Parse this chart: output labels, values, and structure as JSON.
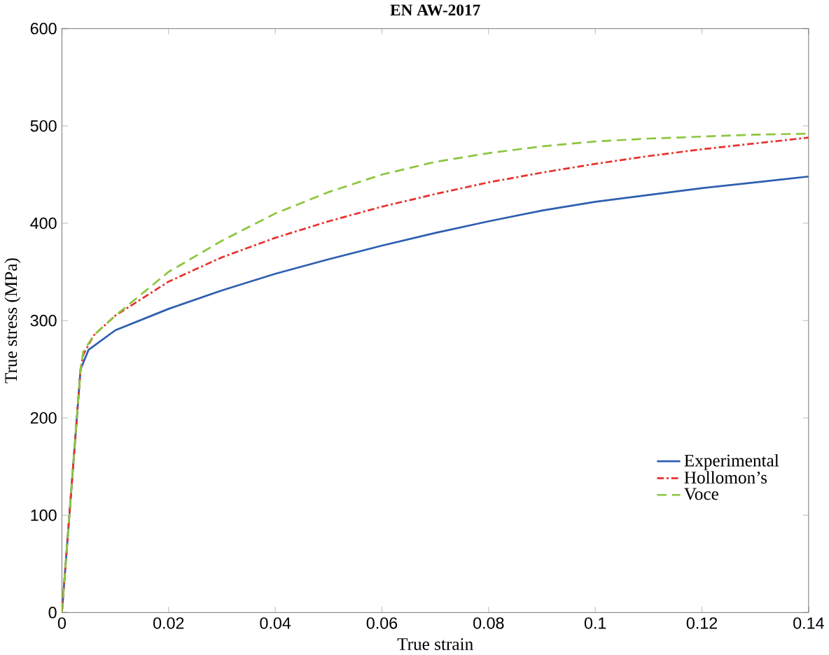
{
  "chart_data": {
    "type": "line",
    "title": "EN AW-2017",
    "xlabel": "True strain",
    "ylabel": "True stress (MPa)",
    "xlim": [
      0,
      0.14
    ],
    "xticks": [
      0,
      0.02,
      0.04,
      0.06,
      0.08,
      0.1,
      0.12,
      0.14
    ],
    "ylim": [
      0,
      600
    ],
    "yticks": [
      0,
      100,
      200,
      300,
      400,
      500,
      600
    ],
    "legend": "bottom right",
    "grid": false,
    "series": [
      {
        "name": "Experimental",
        "color": "#2e5fb0",
        "line_style": "solid",
        "x": [
          0,
          0.0035,
          0.005,
          0.01,
          0.02,
          0.03,
          0.04,
          0.05,
          0.06,
          0.07,
          0.08,
          0.09,
          0.1,
          0.11,
          0.12,
          0.13,
          0.14
        ],
        "values": [
          0,
          250,
          270,
          290,
          312,
          331,
          348,
          363,
          377,
          390,
          402,
          413,
          422,
          429,
          436,
          442,
          448
        ]
      },
      {
        "name": "Hollomon’s",
        "color": "#e8322c",
        "line_style": "dashdot",
        "x": [
          0,
          0.0035,
          0.004,
          0.006,
          0.01,
          0.02,
          0.03,
          0.04,
          0.05,
          0.06,
          0.07,
          0.08,
          0.09,
          0.1,
          0.11,
          0.12,
          0.13,
          0.14
        ],
        "values": [
          0,
          250,
          265,
          285,
          305,
          340,
          365,
          385,
          402,
          417,
          430,
          442,
          452,
          461,
          469,
          476,
          482,
          488
        ]
      },
      {
        "name": "Voce",
        "color": "#8cc63f",
        "line_style": "dashed",
        "x": [
          0,
          0.0035,
          0.004,
          0.006,
          0.01,
          0.02,
          0.03,
          0.04,
          0.05,
          0.06,
          0.07,
          0.08,
          0.09,
          0.1,
          0.11,
          0.12,
          0.13,
          0.14
        ],
        "values": [
          0,
          250,
          268,
          285,
          305,
          350,
          382,
          410,
          432,
          450,
          463,
          472,
          479,
          484,
          487,
          489,
          491,
          492
        ]
      }
    ]
  }
}
